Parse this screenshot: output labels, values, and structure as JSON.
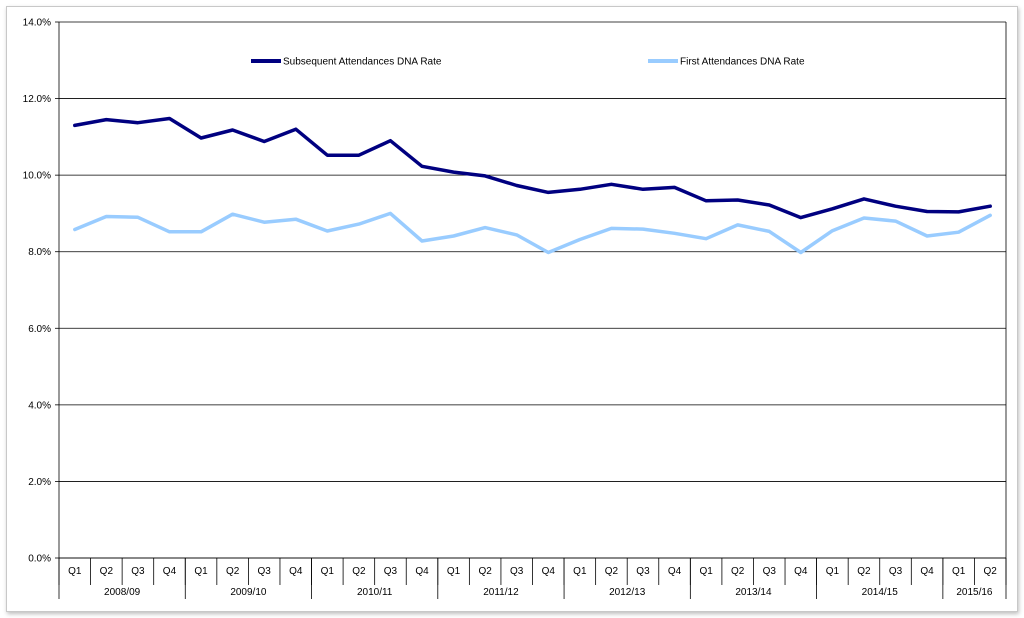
{
  "chart_data": {
    "type": "line",
    "ylim": [
      0,
      14
    ],
    "yticks": [
      "0.0%",
      "2.0%",
      "4.0%",
      "6.0%",
      "8.0%",
      "10.0%",
      "12.0%",
      "14.0%"
    ],
    "yticks_values": [
      0,
      2,
      4,
      6,
      8,
      10,
      12,
      14
    ],
    "grid": true,
    "legend_position": "top",
    "categories": [
      "Q1",
      "Q2",
      "Q3",
      "Q4",
      "Q1",
      "Q2",
      "Q3",
      "Q4",
      "Q1",
      "Q2",
      "Q3",
      "Q4",
      "Q1",
      "Q2",
      "Q3",
      "Q4",
      "Q1",
      "Q2",
      "Q3",
      "Q4",
      "Q1",
      "Q2",
      "Q3",
      "Q4",
      "Q1",
      "Q2",
      "Q3",
      "Q4",
      "Q1",
      "Q2"
    ],
    "groups": [
      {
        "label": "2008/09",
        "count": 4
      },
      {
        "label": "2009/10",
        "count": 4
      },
      {
        "label": "2010/11",
        "count": 4
      },
      {
        "label": "2011/12",
        "count": 4
      },
      {
        "label": "2012/13",
        "count": 4
      },
      {
        "label": "2013/14",
        "count": 4
      },
      {
        "label": "2014/15",
        "count": 4
      },
      {
        "label": "2015/16",
        "count": 2
      }
    ],
    "series": [
      {
        "name": "Subsequent Attendances DNA Rate",
        "color": "#000080",
        "values": [
          11.3,
          11.45,
          11.37,
          11.48,
          10.97,
          11.18,
          10.88,
          11.2,
          10.52,
          10.52,
          10.9,
          10.23,
          10.08,
          9.98,
          9.73,
          9.55,
          9.63,
          9.76,
          9.63,
          9.68,
          9.33,
          9.35,
          9.22,
          8.89,
          9.12,
          9.38,
          9.19,
          9.05,
          9.04,
          9.19
        ]
      },
      {
        "name": "First Attendances DNA Rate",
        "color": "#99ccff",
        "values": [
          8.58,
          8.92,
          8.9,
          8.52,
          8.52,
          8.98,
          8.77,
          8.85,
          8.54,
          8.72,
          9.0,
          8.28,
          8.41,
          8.63,
          8.44,
          7.98,
          8.32,
          8.61,
          8.59,
          8.48,
          8.34,
          8.7,
          8.53,
          7.98,
          8.55,
          8.88,
          8.8,
          8.41,
          8.51,
          8.95
        ]
      }
    ]
  }
}
